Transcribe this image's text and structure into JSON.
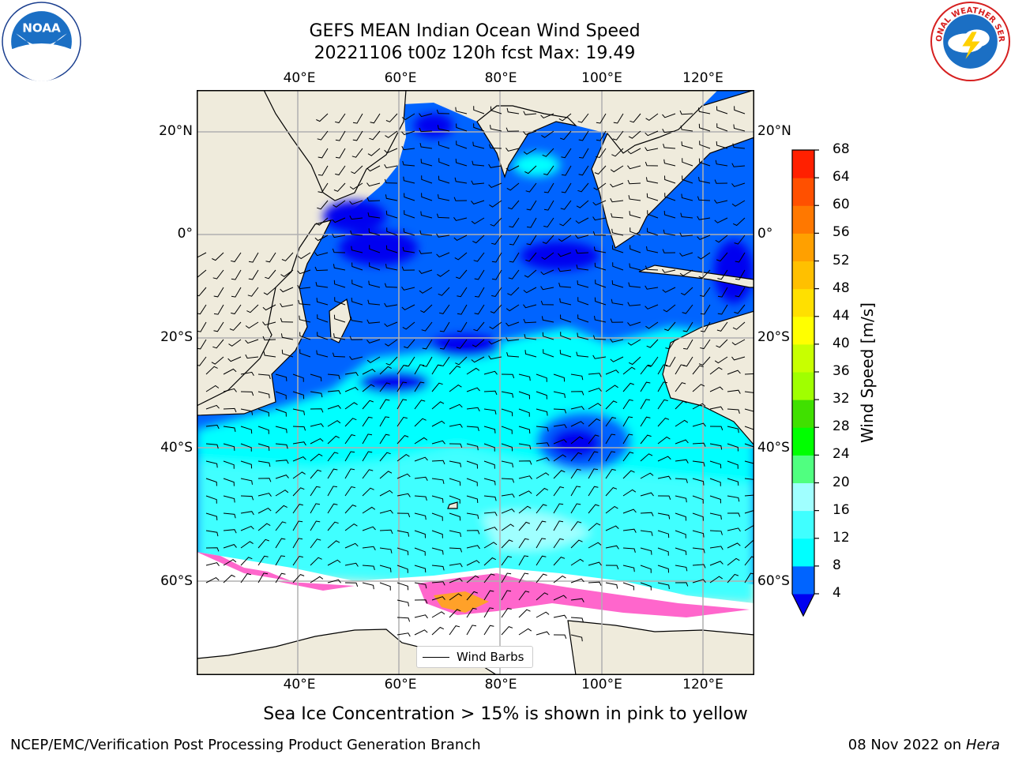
{
  "title": {
    "line1": "GEFS MEAN Indian Ocean Wind Speed",
    "line2": "20221106 t00z 120h fcst   Max: 19.49"
  },
  "logos": {
    "left": {
      "text": "NOAA",
      "icon": "noaa-logo"
    },
    "right": {
      "text": "NATIONAL WEATHER SERVICE",
      "icon": "nws-logo"
    }
  },
  "map": {
    "lon_labels": [
      "40°E",
      "60°E",
      "80°E",
      "100°E",
      "120°E"
    ],
    "lat_labels": [
      "20°N",
      "0°",
      "20°S",
      "40°S",
      "60°S"
    ],
    "extent": {
      "lon": [
        20,
        130
      ],
      "lat": [
        -68,
        27
      ]
    },
    "legend_label": "Wind Barbs"
  },
  "colorbar": {
    "label": "Wind Speed [m/s]",
    "ticks": [
      "68",
      "64",
      "60",
      "56",
      "52",
      "48",
      "44",
      "40",
      "36",
      "32",
      "28",
      "24",
      "20",
      "16",
      "12",
      "8",
      "4"
    ],
    "colors": [
      "#0000f0",
      "#0064ff",
      "#00ffff",
      "#40ffff",
      "#a0ffff",
      "#50ff80",
      "#00ff00",
      "#40e000",
      "#a0ff00",
      "#c8ff00",
      "#ffff00",
      "#ffe000",
      "#ffc000",
      "#ffa000",
      "#ff7800",
      "#ff5000",
      "#ff2000",
      "#ff0000"
    ]
  },
  "subtitle": "Sea Ice Concentration > 15% is shown in pink to yellow",
  "footer": {
    "left": "NCEP/EMC/Verification Post Processing Product Generation Branch",
    "right_date": "08 Nov 2022 on",
    "right_machine": "Hera"
  }
}
